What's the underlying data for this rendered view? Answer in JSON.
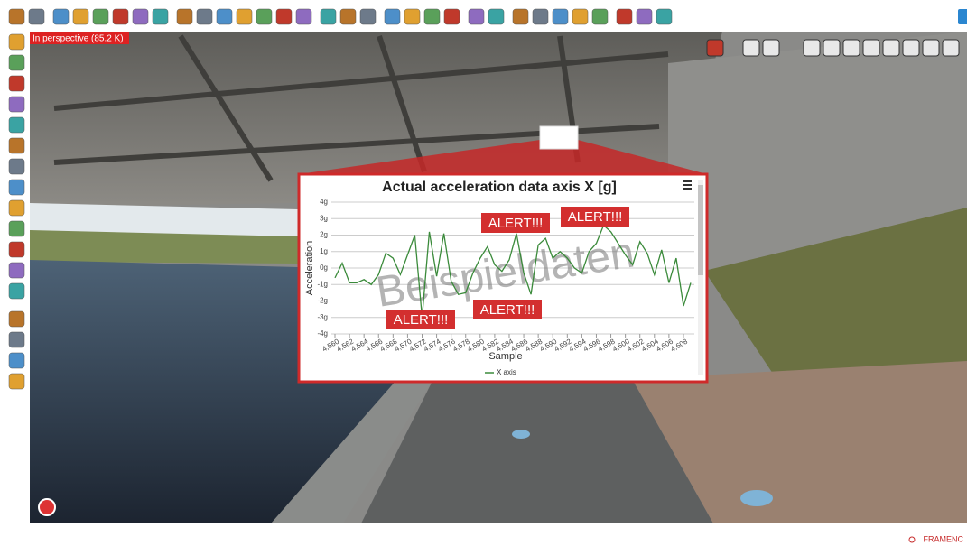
{
  "app": {
    "perspective_label": "In perspective (85.2 K)",
    "footer_brand": "FRAMENC"
  },
  "chart_data": {
    "type": "line",
    "title": "Actual acceleration data axis X [g]",
    "x_label": "Sample",
    "y_label": "Acceleration",
    "watermark": "Beispieldaten",
    "annotations": [
      "ALERT!!!",
      "ALERT!!!",
      "ALERT!!!",
      "ALERT!!!"
    ],
    "x": [
      4560,
      4561,
      4562,
      4563,
      4564,
      4565,
      4566,
      4567,
      4568,
      4569,
      4570,
      4571,
      4572,
      4573,
      4574,
      4575,
      4576,
      4577,
      4578,
      4579,
      4580,
      4581,
      4582,
      4583,
      4584,
      4585,
      4586,
      4587,
      4588,
      4589,
      4590,
      4591,
      4592,
      4593,
      4594,
      4595,
      4596,
      4597,
      4598,
      4599,
      4600,
      4601,
      4602,
      4603,
      4604,
      4605,
      4606,
      4607,
      4608,
      4609
    ],
    "series": [
      {
        "name": "X axis",
        "color": "#3a8a3a",
        "values": [
          -0.6,
          0.3,
          -0.9,
          -0.9,
          -0.7,
          -1.0,
          -0.4,
          0.9,
          0.6,
          -0.4,
          0.8,
          2.0,
          -3.0,
          2.2,
          -0.5,
          2.1,
          -0.8,
          -1.6,
          -1.5,
          -0.3,
          0.6,
          1.3,
          0.2,
          -0.2,
          0.5,
          2.1,
          -0.3,
          -1.6,
          1.4,
          1.8,
          0.6,
          1.0,
          0.6,
          0.0,
          -0.3,
          1.0,
          1.5,
          2.6,
          2.2,
          1.5,
          0.8,
          0.2,
          1.6,
          0.9,
          -0.4,
          1.1,
          -0.9,
          0.6,
          -2.3,
          -0.9
        ]
      }
    ],
    "xlim": [
      4560,
      4609
    ],
    "xticks": [
      {
        "value": 4560,
        "label": "4,560"
      },
      {
        "value": 4562,
        "label": "4,562"
      },
      {
        "value": 4564,
        "label": "4,564"
      },
      {
        "value": 4566,
        "label": "4,566"
      },
      {
        "value": 4568,
        "label": "4,568"
      },
      {
        "value": 4570,
        "label": "4,570"
      },
      {
        "value": 4572,
        "label": "4,572"
      },
      {
        "value": 4574,
        "label": "4,574"
      },
      {
        "value": 4576,
        "label": "4,576"
      },
      {
        "value": 4578,
        "label": "4,578"
      },
      {
        "value": 4580,
        "label": "4,580"
      },
      {
        "value": 4582,
        "label": "4,582"
      },
      {
        "value": 4584,
        "label": "4,584"
      },
      {
        "value": 4586,
        "label": "4,586"
      },
      {
        "value": 4588,
        "label": "4,588"
      },
      {
        "value": 4590,
        "label": "4,590"
      },
      {
        "value": 4592,
        "label": "4,592"
      },
      {
        "value": 4594,
        "label": "4,594"
      },
      {
        "value": 4596,
        "label": "4,596"
      },
      {
        "value": 4598,
        "label": "4,598"
      },
      {
        "value": 4600,
        "label": "4,600"
      },
      {
        "value": 4602,
        "label": "4,602"
      },
      {
        "value": 4604,
        "label": "4,604"
      },
      {
        "value": 4606,
        "label": "4,606"
      },
      {
        "value": 4608,
        "label": "4,608"
      }
    ],
    "ylim": [
      -4,
      4
    ],
    "yticks": [
      {
        "value": -4,
        "label": "-4g"
      },
      {
        "value": -3,
        "label": "-3g"
      },
      {
        "value": -2,
        "label": "-2g"
      },
      {
        "value": -1,
        "label": "-1g"
      },
      {
        "value": 0,
        "label": "0g"
      },
      {
        "value": 1,
        "label": "1g"
      },
      {
        "value": 2,
        "label": "2g"
      },
      {
        "value": 3,
        "label": "3g"
      },
      {
        "value": 4,
        "label": "4g"
      }
    ],
    "grid": true
  }
}
